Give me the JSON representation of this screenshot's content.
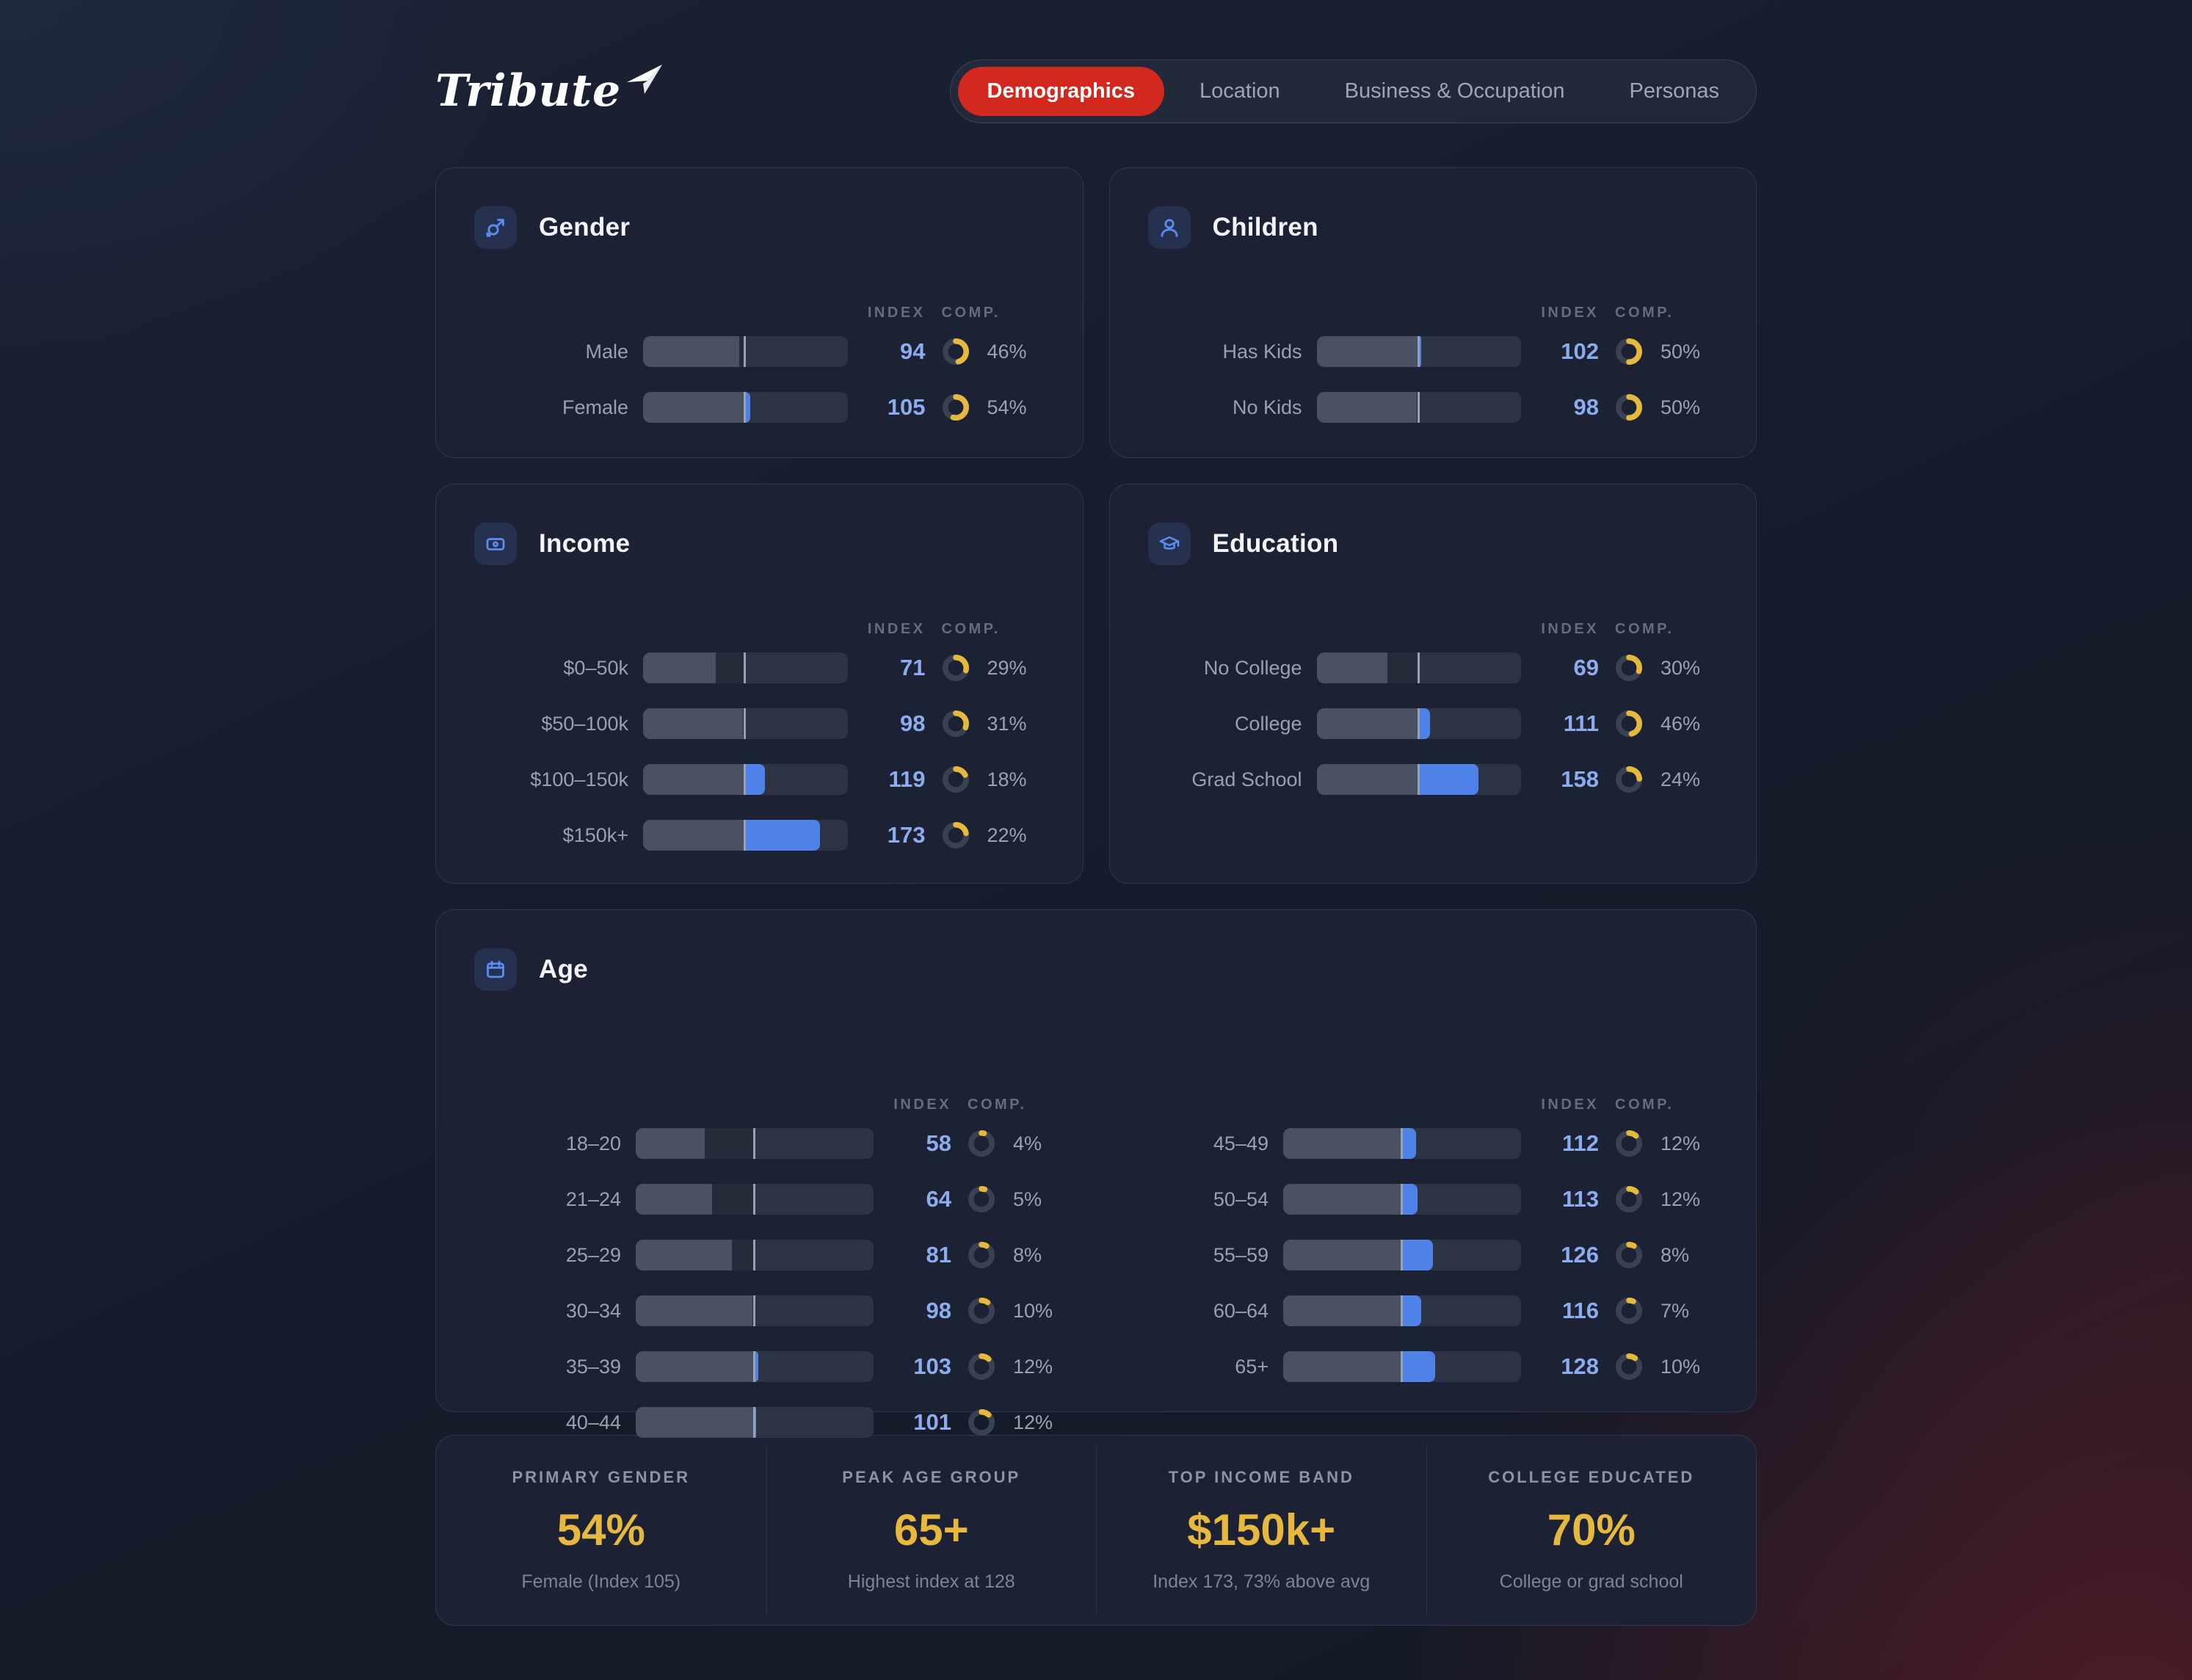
{
  "brand": {
    "name": "Tribute",
    "plane_icon": "paper-plane-icon"
  },
  "nav": {
    "tabs": [
      {
        "label": "Demographics",
        "active": true
      },
      {
        "label": "Location",
        "active": false
      },
      {
        "label": "Business & Occupation",
        "active": false
      },
      {
        "label": "Personas",
        "active": false
      }
    ]
  },
  "table_headers": {
    "index": "INDEX",
    "comp": "COMP."
  },
  "colors": {
    "accent_red": "#D2281E",
    "accent_blue": "#4E82E9",
    "accent_yellow": "#E6B83D",
    "index_text": "#8CACEE",
    "card_bg": "#1C2233"
  },
  "cards": [
    {
      "id": "gender",
      "title": "Gender",
      "icon": "gender-icon",
      "height_class": "h2rows",
      "rows": [
        {
          "label": "Male",
          "index": 94,
          "comp": "46%",
          "comp_pct": 46
        },
        {
          "label": "Female",
          "index": 105,
          "comp": "54%",
          "comp_pct": 54
        }
      ]
    },
    {
      "id": "children",
      "title": "Children",
      "icon": "person-icon",
      "height_class": "h2rows",
      "rows": [
        {
          "label": "Has Kids",
          "index": 102,
          "comp": "50%",
          "comp_pct": 50
        },
        {
          "label": "No Kids",
          "index": 98,
          "comp": "50%",
          "comp_pct": 50
        }
      ]
    },
    {
      "id": "income",
      "title": "Income",
      "icon": "banknote-icon",
      "height_class": "h4rows",
      "rows": [
        {
          "label": "$0–50k",
          "index": 71,
          "comp": "29%",
          "comp_pct": 29
        },
        {
          "label": "$50–100k",
          "index": 98,
          "comp": "31%",
          "comp_pct": 31
        },
        {
          "label": "$100–150k",
          "index": 119,
          "comp": "18%",
          "comp_pct": 18
        },
        {
          "label": "$150k+",
          "index": 173,
          "comp": "22%",
          "comp_pct": 22
        }
      ]
    },
    {
      "id": "education",
      "title": "Education",
      "icon": "graduation-cap-icon",
      "height_class": "h4rows",
      "rows": [
        {
          "label": "No College",
          "index": 69,
          "comp": "30%",
          "comp_pct": 30
        },
        {
          "label": "College",
          "index": 111,
          "comp": "46%",
          "comp_pct": 46
        },
        {
          "label": "Grad School",
          "index": 158,
          "comp": "24%",
          "comp_pct": 24
        }
      ]
    }
  ],
  "age_card": {
    "id": "age",
    "title": "Age",
    "icon": "calendar-icon",
    "rows_left": [
      {
        "label": "18–20",
        "index": 58,
        "comp": "4%",
        "comp_pct": 4
      },
      {
        "label": "21–24",
        "index": 64,
        "comp": "5%",
        "comp_pct": 5
      },
      {
        "label": "25–29",
        "index": 81,
        "comp": "8%",
        "comp_pct": 8
      },
      {
        "label": "30–34",
        "index": 98,
        "comp": "10%",
        "comp_pct": 10
      },
      {
        "label": "35–39",
        "index": 103,
        "comp": "12%",
        "comp_pct": 12
      },
      {
        "label": "40–44",
        "index": 101,
        "comp": "12%",
        "comp_pct": 12
      }
    ],
    "rows_right": [
      {
        "label": "45–49",
        "index": 112,
        "comp": "12%",
        "comp_pct": 12
      },
      {
        "label": "50–54",
        "index": 113,
        "comp": "12%",
        "comp_pct": 12
      },
      {
        "label": "55–59",
        "index": 126,
        "comp": "8%",
        "comp_pct": 8
      },
      {
        "label": "60–64",
        "index": 116,
        "comp": "7%",
        "comp_pct": 7
      },
      {
        "label": "65+",
        "index": 128,
        "comp": "10%",
        "comp_pct": 10
      }
    ]
  },
  "summary": {
    "items": [
      {
        "label": "PRIMARY GENDER",
        "value": "54%",
        "sub": "Female (Index 105)"
      },
      {
        "label": "PEAK AGE GROUP",
        "value": "65+",
        "sub": "Highest index at 128"
      },
      {
        "label": "TOP INCOME BAND",
        "value": "$150k+",
        "sub": "Index 173, 73% above avg"
      },
      {
        "label": "COLLEGE EDUCATED",
        "value": "70%",
        "sub": "College or grad school"
      }
    ]
  }
}
